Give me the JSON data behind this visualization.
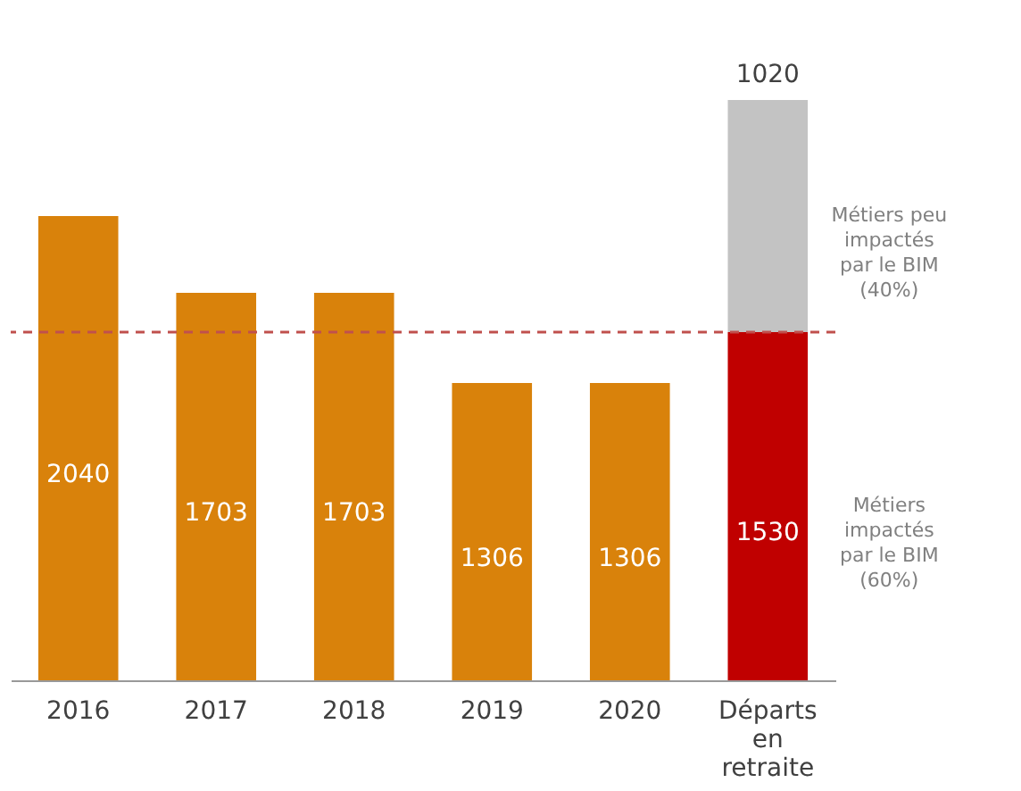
{
  "chart_data": {
    "type": "bar",
    "stacked": true,
    "data_labels": true,
    "categories": [
      "2016",
      "2017",
      "2018",
      "2019",
      "2020",
      "Départs en retraite"
    ],
    "series": [
      {
        "colors": [
          "#d9820b",
          "#d9820b",
          "#d9820b",
          "#d9820b",
          "#d9820b",
          "#c00000"
        ],
        "values": [
          2040,
          1703,
          1703,
          1306,
          1306,
          1530
        ]
      },
      {
        "color": "#c3c3c3",
        "values": [
          null,
          null,
          null,
          null,
          null,
          1020
        ]
      }
    ],
    "ref_lines": [
      {
        "axis": "y",
        "value": 1530,
        "color": "#c0504d",
        "line_style": "dashed"
      }
    ],
    "annotations": [
      "Métiers peu impactés par le BIM (40%)",
      "Métiers impactés par le BIM (60%)"
    ]
  }
}
